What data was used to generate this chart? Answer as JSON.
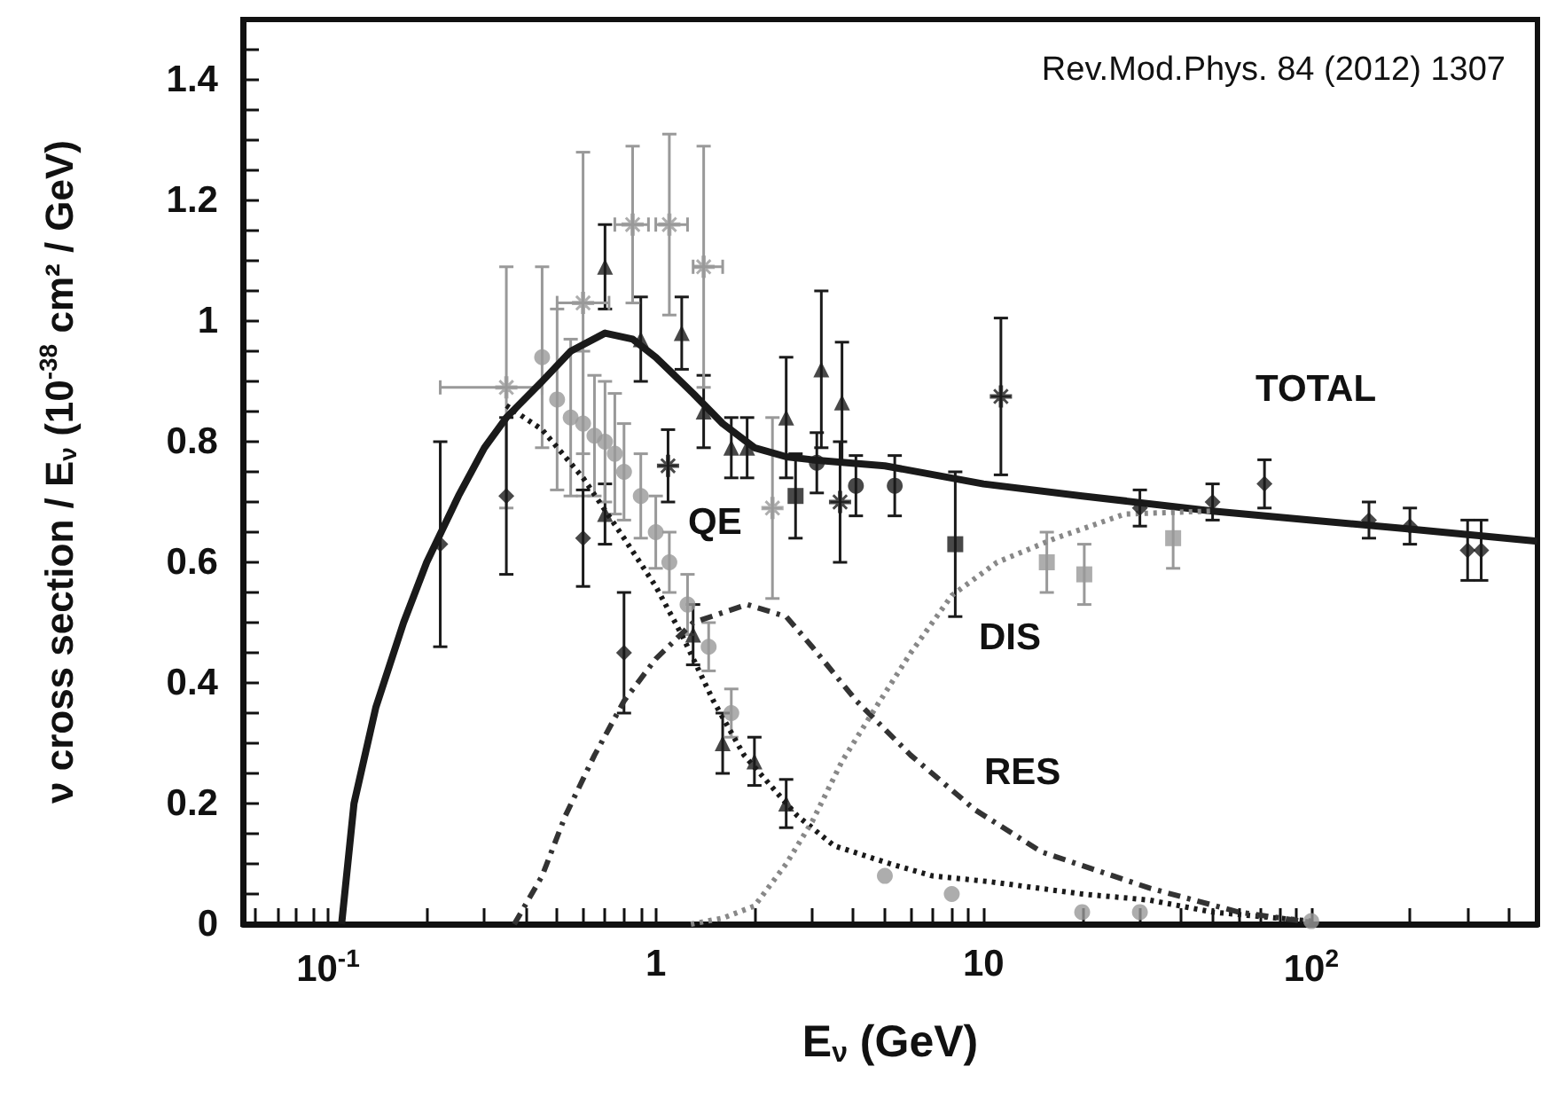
{
  "chart_data": {
    "type": "scatter",
    "xlabel": "E$_{ν}$ (GeV)",
    "ylabel": "ν cross section / E$_{ν}$ (10$^{-38}$ cm² / GeV)",
    "log": "x",
    "xlim": [
      0.055,
      490
    ],
    "ylim": [
      0,
      1.5
    ],
    "xticks": [
      {
        "value": 0.06,
        "label": null
      },
      {
        "value": 0.07,
        "label": null
      },
      {
        "value": 0.08,
        "label": null
      },
      {
        "value": 0.09,
        "label": null
      },
      {
        "value": 0.1,
        "label": "10$^{-1}$"
      },
      {
        "value": 0.2,
        "label": null
      },
      {
        "value": 0.3,
        "label": null
      },
      {
        "value": 0.4,
        "label": null
      },
      {
        "value": 0.5,
        "label": null
      },
      {
        "value": 0.6,
        "label": null
      },
      {
        "value": 0.7,
        "label": null
      },
      {
        "value": 0.8,
        "label": null
      },
      {
        "value": 0.9,
        "label": null
      },
      1,
      {
        "value": 2,
        "label": null
      },
      {
        "value": 3,
        "label": null
      },
      {
        "value": 4,
        "label": null
      },
      {
        "value": 5,
        "label": null
      },
      {
        "value": 6,
        "label": null
      },
      {
        "value": 7,
        "label": null
      },
      {
        "value": 8,
        "label": null
      },
      {
        "value": 9,
        "label": null
      },
      10,
      {
        "value": 20,
        "label": null
      },
      {
        "value": 30,
        "label": null
      },
      {
        "value": 40,
        "label": null
      },
      {
        "value": 50,
        "label": null
      },
      {
        "value": 60,
        "label": null
      },
      {
        "value": 70,
        "label": null
      },
      {
        "value": 80,
        "label": null
      },
      {
        "value": 90,
        "label": null
      },
      {
        "value": 100,
        "label": "10$^{2}$"
      },
      {
        "value": 200,
        "label": null
      },
      {
        "value": 300,
        "label": null
      },
      {
        "value": 400,
        "label": null
      }
    ],
    "yticks": [
      0,
      {
        "value": 0.05,
        "label": null
      },
      {
        "value": 0.1,
        "label": null
      },
      {
        "value": 0.15,
        "label": null
      },
      0.2,
      {
        "value": 0.25,
        "label": null
      },
      {
        "value": 0.3,
        "label": null
      },
      {
        "value": 0.35,
        "label": null
      },
      0.4,
      {
        "value": 0.45,
        "label": null
      },
      {
        "value": 0.5,
        "label": null
      },
      {
        "value": 0.55,
        "label": null
      },
      0.6,
      {
        "value": 0.65,
        "label": null
      },
      {
        "value": 0.7,
        "label": null
      },
      {
        "value": 0.75,
        "label": null
      },
      0.8,
      {
        "value": 0.85,
        "label": null
      },
      {
        "value": 0.9,
        "label": null
      },
      {
        "value": 0.95,
        "label": null
      },
      {
        "value": 1,
        "label": "1"
      },
      {
        "value": 1.05,
        "label": null
      },
      {
        "value": 1.1,
        "label": null
      },
      {
        "value": 1.15,
        "label": null
      },
      1.2,
      {
        "value": 1.25,
        "label": null
      },
      {
        "value": 1.3,
        "label": null
      },
      {
        "value": 1.35,
        "label": null
      },
      1.4,
      {
        "value": 1.45,
        "label": null
      }
    ],
    "annotations": [
      "Rev.Mod.Phys. 84 (2012) 1307",
      "TOTAL",
      "QE",
      "DIS",
      "RES"
    ],
    "series": [
      {
        "type": "line",
        "color": "#1a1a1a",
        "line_style": "solid",
        "marker": "none",
        "x": [
          0.11,
          0.12,
          0.14,
          0.17,
          0.2,
          0.25,
          0.3,
          0.35,
          0.45,
          0.55,
          0.7,
          0.85,
          1,
          1.3,
          1.6,
          2,
          2.5,
          3,
          5,
          10,
          20,
          50,
          100,
          200,
          490
        ],
        "values": [
          0,
          0.2,
          0.36,
          0.5,
          0.6,
          0.71,
          0.79,
          0.84,
          0.9,
          0.95,
          0.98,
          0.97,
          0.94,
          0.88,
          0.83,
          0.79,
          0.775,
          0.77,
          0.76,
          0.73,
          0.71,
          0.685,
          0.67,
          0.655,
          0.635
        ]
      },
      {
        "type": "line",
        "color": "#1a1a1a",
        "line_style": "dotted",
        "marker": "none",
        "x": [
          0.35,
          0.45,
          0.6,
          0.8,
          1,
          1.2,
          1.5,
          1.86,
          2.7,
          3.5,
          5.2,
          7,
          10.6,
          20,
          32,
          50,
          100
        ],
        "values": [
          0.86,
          0.82,
          0.74,
          0.64,
          0.56,
          0.48,
          0.37,
          0.28,
          0.18,
          0.13,
          0.1,
          0.08,
          0.07,
          0.05,
          0.04,
          0.02,
          0.005
        ]
      },
      {
        "type": "line",
        "color": "#333333",
        "line_style": "dashed",
        "marker": "none",
        "x": [
          0.37,
          0.45,
          0.53,
          0.65,
          0.8,
          1,
          1.3,
          1.9,
          2.5,
          3,
          4.1,
          6,
          9.4,
          15,
          32,
          60,
          100
        ],
        "values": [
          0,
          0.08,
          0.18,
          0.28,
          0.37,
          0.44,
          0.5,
          0.53,
          0.51,
          0.46,
          0.37,
          0.28,
          0.19,
          0.12,
          0.06,
          0.02,
          0.003
        ]
      },
      {
        "type": "line",
        "color": "#888888",
        "line_style": "dotted",
        "marker": "none",
        "x": [
          1.28,
          1.6,
          2,
          2.5,
          3,
          3.7,
          4.7,
          6,
          8,
          11,
          16.6,
          27,
          50
        ],
        "values": [
          0,
          0.01,
          0.03,
          0.1,
          0.17,
          0.27,
          0.36,
          0.45,
          0.545,
          0.6,
          0.64,
          0.68,
          0.685
        ]
      },
      {
        "color": "#1a1a1a",
        "marker": "triangle",
        "x": [
          0.7,
          0.9,
          1.2,
          1.4,
          1.7,
          1.9,
          2.5,
          3.2,
          3.7,
          0.7,
          1.3,
          1.6,
          2,
          2.5
        ],
        "values": [
          1.09,
          0.97,
          0.98,
          0.85,
          0.79,
          0.79,
          0.84,
          0.92,
          0.865,
          0.68,
          0.48,
          0.3,
          0.27,
          0.2
        ],
        "errors": [
          0.07,
          0.07,
          0.06,
          0.06,
          0.05,
          0.05,
          0.1,
          0.13,
          0.1,
          0.05,
          0.05,
          0.05,
          0.04,
          0.04
        ]
      },
      {
        "color": "#999999",
        "marker": "circle",
        "x": [
          0.45,
          0.5,
          0.55,
          0.6,
          0.65,
          0.7,
          0.75,
          0.8,
          0.9,
          1,
          1.1,
          1.25,
          1.45,
          1.7,
          5,
          8,
          20,
          30,
          100
        ],
        "values": [
          0.94,
          0.87,
          0.84,
          0.83,
          0.81,
          0.8,
          0.78,
          0.75,
          0.71,
          0.65,
          0.6,
          0.53,
          0.46,
          0.35,
          0.08,
          0.05,
          0.02,
          0.02,
          0.005
        ],
        "errors": [
          0.15,
          0.15,
          0.13,
          0.12,
          0.1,
          0.1,
          0.1,
          0.08,
          0.07,
          0.06,
          0.05,
          0.05,
          0.04,
          0.04,
          null,
          null,
          null,
          null,
          null
        ]
      },
      {
        "color": "#999999",
        "marker": "cross",
        "x": [
          0.35,
          0.6,
          0.85,
          1.1,
          1.4,
          2.27
        ],
        "values": [
          0.89,
          1.03,
          1.16,
          1.16,
          1.09,
          0.69
        ],
        "errors": [
          0.2,
          0.25,
          0.13,
          0.15,
          0.2,
          0.15
        ],
        "xerrors": [
          [
            0.22,
            0.45
          ],
          [
            0.5,
            0.72
          ],
          [
            0.75,
            0.95
          ],
          [
            1,
            1.25
          ],
          [
            1.3,
            1.6
          ],
          null
        ]
      },
      {
        "color": "#999999",
        "marker": "square",
        "x": [
          15.6,
          20.3,
          37.9
        ],
        "values": [
          0.6,
          0.58,
          0.64
        ],
        "errors": [
          0.05,
          0.05,
          0.05
        ]
      },
      {
        "color": "#1a1a1a",
        "marker": "circle",
        "x": [
          3.1,
          4.08,
          5.36
        ],
        "values": [
          0.765,
          0.727,
          0.727
        ],
        "errors": [
          0.05,
          0.05,
          0.05
        ]
      },
      {
        "color": "#1a1a1a",
        "marker": "square",
        "x": [
          2.67,
          8.2
        ],
        "values": [
          0.71,
          0.63
        ],
        "errors": [
          0.07,
          0.12
        ]
      },
      {
        "color": "#1a1a1a",
        "marker": "cross",
        "x": [
          1.09,
          11.3,
          3.65
        ],
        "values": [
          0.76,
          0.875,
          0.7
        ],
        "errors": [
          0.06,
          0.13,
          0.1
        ]
      },
      {
        "color": "#1a1a1a",
        "marker": "diamond",
        "x": [
          0.22,
          0.35,
          0.6,
          0.8,
          30,
          50,
          72,
          150,
          200,
          300,
          330
        ],
        "values": [
          0.63,
          0.71,
          0.64,
          0.45,
          0.69,
          0.7,
          0.73,
          0.67,
          0.66,
          0.62,
          0.62
        ],
        "errors": [
          0.17,
          0.13,
          0.08,
          0.1,
          0.03,
          0.03,
          0.04,
          0.03,
          0.03,
          0.05,
          0.05
        ]
      }
    ]
  }
}
